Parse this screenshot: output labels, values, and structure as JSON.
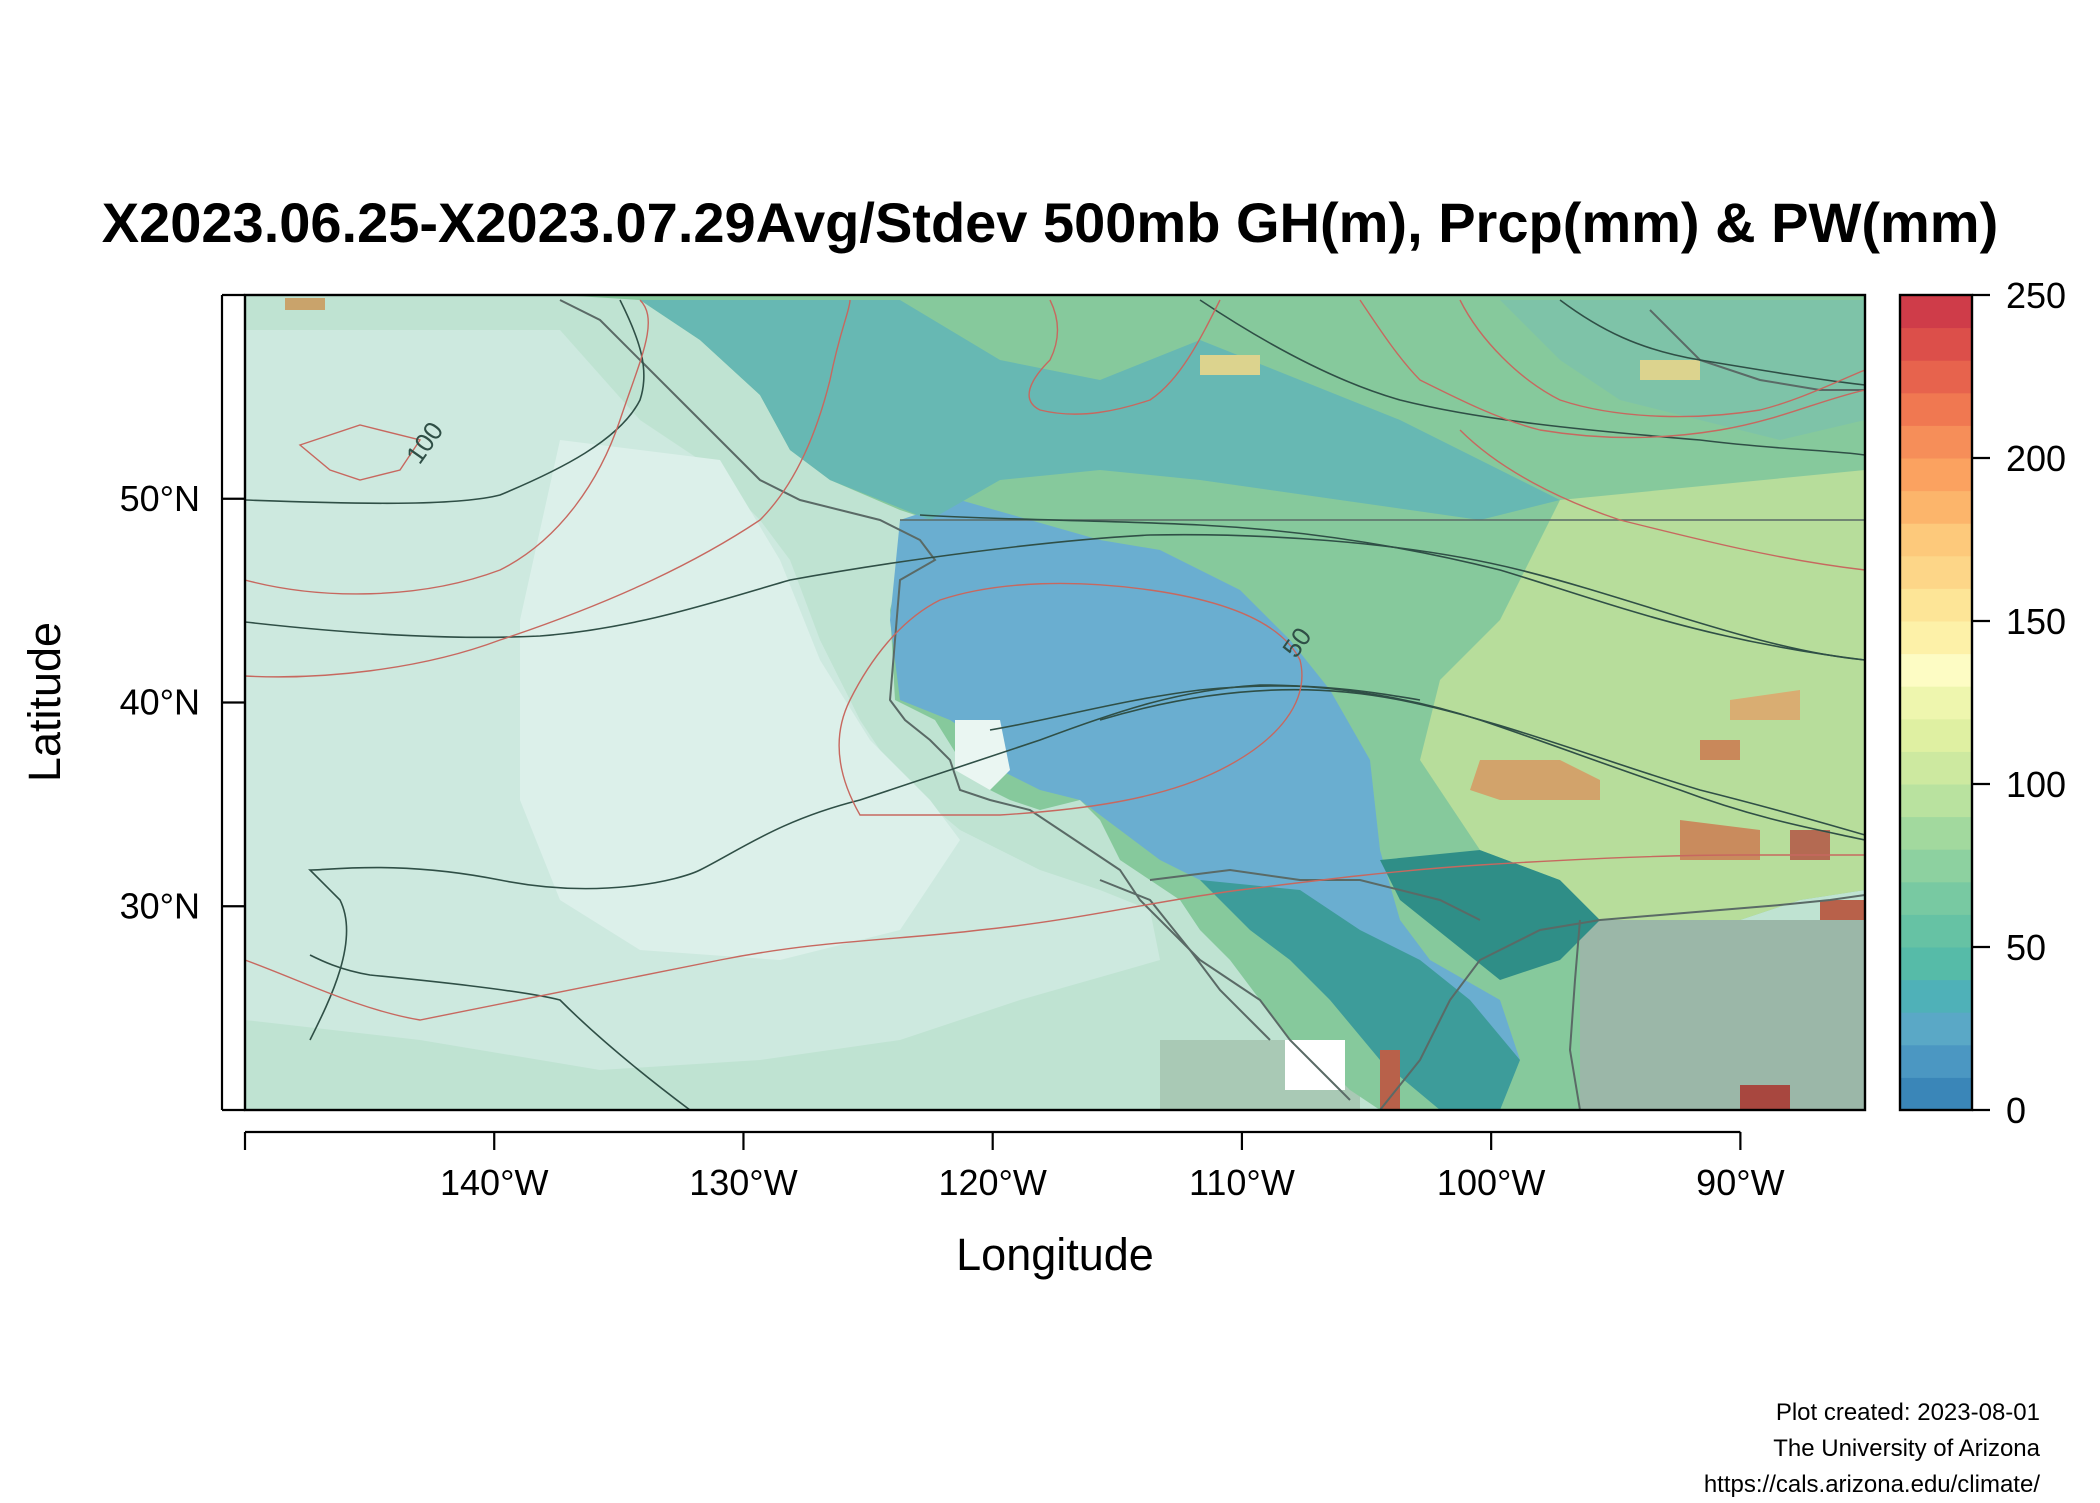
{
  "title": "X2023.06.25-X2023.07.29Avg/Stdev 500mb GH(m), Prcp(mm) & PW(mm)",
  "map": {
    "xlabel": "Longitude",
    "ylabel": "Latitude",
    "lon_range": [
      -150,
      -85
    ],
    "lat_range": [
      20,
      60
    ],
    "lon_ticks": [
      {
        "value": -150,
        "label": ""
      },
      {
        "value": -140,
        "label": "140°W"
      },
      {
        "value": -130,
        "label": "130°W"
      },
      {
        "value": -120,
        "label": "120°W"
      },
      {
        "value": -110,
        "label": "110°W"
      },
      {
        "value": -100,
        "label": "100°W"
      },
      {
        "value": -90,
        "label": "90°W"
      }
    ],
    "lat_ticks": [
      {
        "value": 20,
        "label": ""
      },
      {
        "value": 30,
        "label": "30°N"
      },
      {
        "value": 40,
        "label": "40°N"
      },
      {
        "value": 50,
        "label": "50°N"
      },
      {
        "value": 60,
        "label": ""
      }
    ],
    "contour_labels": [
      {
        "label": "100",
        "lon": -142.5,
        "lat": 52.5
      },
      {
        "label": "50",
        "lon": -107.5,
        "lat": 42.7
      }
    ]
  },
  "colorbar": {
    "min": 0,
    "max": 250,
    "ticks": [
      {
        "value": 0,
        "label": "0"
      },
      {
        "value": 50,
        "label": "50"
      },
      {
        "value": 100,
        "label": "100"
      },
      {
        "value": 150,
        "label": "150"
      },
      {
        "value": 200,
        "label": "200"
      },
      {
        "value": 250,
        "label": "250"
      }
    ],
    "colors": [
      "#3a86b8",
      "#4b97c2",
      "#5aa8c6",
      "#4fb1b8",
      "#56bba8",
      "#66c2a4",
      "#78c9a2",
      "#8dd1a0",
      "#a2d99e",
      "#b9e29f",
      "#cde9a0",
      "#dff0a2",
      "#eef6ae",
      "#fdfcc4",
      "#fdf1a8",
      "#fde597",
      "#fdd688",
      "#fdc97b",
      "#fcb56b",
      "#fba260",
      "#f68e59",
      "#f07851",
      "#e7634d",
      "#dc4f4a",
      "#cf3c49"
    ]
  },
  "credit": {
    "line1": "Plot created: 2023-08-01",
    "line2": "The University of Arizona",
    "line3": "https://cals.arizona.edu/climate/"
  }
}
